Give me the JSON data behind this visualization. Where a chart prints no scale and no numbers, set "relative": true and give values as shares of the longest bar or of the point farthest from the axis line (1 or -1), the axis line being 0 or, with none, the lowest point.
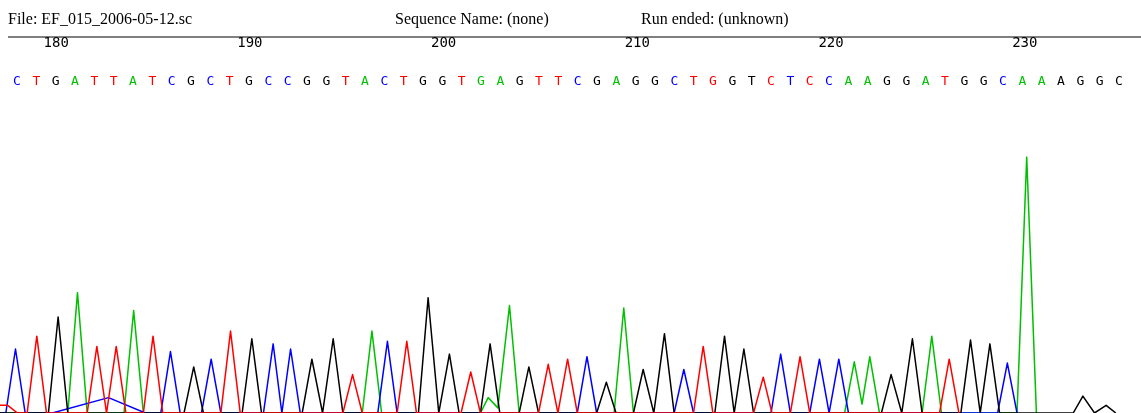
{
  "chart_data": {
    "type": "line",
    "relative": true,
    "marker": "none",
    "annotations": [
      "File: EF_015_2006-05-12.sc",
      "Sequence Name: (none)",
      "Run ended: (unknown)",
      "C",
      "T",
      "G",
      "A",
      "T",
      "T",
      "A",
      "T",
      "C",
      "G",
      "C",
      "T",
      "G",
      "C",
      "C",
      "G",
      "G",
      "T",
      "A",
      "C",
      "T",
      "G",
      "G",
      "T",
      "G",
      "A",
      "G",
      "T",
      "T",
      "C",
      "G",
      "A",
      "G",
      "G",
      "C",
      "T",
      "G",
      "G",
      "T",
      "C",
      "T",
      "C",
      "C",
      "A",
      "A",
      "G",
      "G",
      "A",
      "T",
      "G",
      "G",
      "C",
      "A",
      "A",
      "A",
      "G",
      "G",
      "C"
    ],
    "xlim": [
      177.1,
      236.0
    ],
    "xticks": [
      180,
      190,
      200,
      210,
      220,
      230
    ],
    "series": [
      {
        "color": "#00c000",
        "x": [
          177.1,
          180.6,
          181.1,
          181.6,
          183.5,
          184.0,
          184.5,
          195.8,
          196.3,
          196.8,
          201.9,
          202.3,
          202.8,
          203.4,
          203.9,
          208.8,
          209.3,
          209.8,
          220.7,
          221.2,
          221.6,
          222.0,
          222.5,
          224.7,
          225.2,
          225.7,
          229.6,
          230.1,
          230.6
        ],
        "values": [
          0,
          0,
          0.47,
          0,
          0,
          0.4,
          0,
          0,
          0.32,
          0,
          0,
          0.06,
          0.02,
          0.42,
          0,
          0,
          0.41,
          0,
          0,
          0.2,
          0.035,
          0.22,
          0,
          0,
          0.3,
          0,
          0,
          1,
          0
        ]
      },
      {
        "color": "#0000ff",
        "x": [
          177.1,
          177.4,
          177.9,
          178.4,
          179.8,
          182.7,
          184.6,
          185.4,
          185.9,
          186.4,
          187.5,
          188.0,
          188.5,
          190.7,
          191.2,
          191.65,
          192.1,
          192.6,
          196.6,
          197.1,
          197.6,
          206.9,
          207.4,
          207.9,
          211.9,
          212.4,
          212.9,
          216.9,
          217.4,
          217.9,
          218.9,
          219.4,
          219.9,
          220.4,
          220.9,
          228.6,
          229.1,
          229.6
        ],
        "values": [
          0,
          0,
          0.25,
          0,
          0,
          0.06,
          0,
          0,
          0.24,
          0,
          0,
          0.21,
          0,
          0,
          0.27,
          0,
          0.25,
          0,
          0,
          0.28,
          0,
          0,
          0.22,
          0,
          0,
          0.17,
          0,
          0,
          0.23,
          0,
          0,
          0.21,
          0,
          0.21,
          0,
          0,
          0.195,
          0
        ]
      },
      {
        "color": "#000000",
        "x": [
          177.1,
          179.6,
          180.1,
          180.6,
          186.6,
          187.1,
          187.6,
          189.6,
          190.1,
          190.6,
          192.7,
          193.2,
          193.75,
          194.3,
          194.8,
          198.7,
          199.2,
          199.75,
          200.3,
          200.8,
          201.9,
          202.4,
          202.9,
          203.9,
          204.4,
          204.9,
          207.9,
          208.4,
          208.9,
          209.8,
          210.3,
          210.85,
          211.4,
          211.9,
          214.0,
          214.5,
          215.0,
          215.5,
          216.0,
          222.6,
          223.1,
          223.65,
          224.2,
          224.7,
          226.7,
          227.2,
          227.7,
          228.2,
          228.7,
          232.5,
          233.0,
          233.6,
          234.2,
          234.7
        ],
        "values": [
          0,
          0,
          0.375,
          0,
          0,
          0.18,
          0,
          0,
          0.29,
          0,
          0,
          0.21,
          0,
          0.29,
          0,
          0,
          0.45,
          0,
          0.23,
          0,
          0,
          0.27,
          0,
          0,
          0.18,
          0,
          0,
          0.12,
          0,
          0,
          0.17,
          0,
          0.31,
          0,
          0,
          0.3,
          0,
          0.25,
          0,
          0,
          0.15,
          0,
          0.29,
          0,
          0,
          0.285,
          0,
          0.27,
          0,
          0,
          0.066,
          0,
          0.03,
          0
        ]
      },
      {
        "color": "#ff0000",
        "x": [
          177.1,
          177.5,
          178.0,
          178.5,
          179.0,
          179.5,
          181.6,
          182.1,
          182.6,
          183.1,
          183.6,
          184.5,
          185.0,
          185.5,
          188.5,
          189.0,
          189.5,
          194.8,
          195.3,
          195.8,
          197.6,
          198.1,
          198.6,
          200.9,
          201.4,
          201.9,
          204.9,
          205.4,
          205.9,
          206.4,
          206.9,
          212.9,
          213.4,
          213.9,
          216.0,
          216.5,
          216.95,
          217.9,
          218.4,
          218.9,
          225.6,
          226.1,
          226.6
        ],
        "values": [
          0.03,
          0.03,
          0,
          0,
          0.3,
          0,
          0,
          0.26,
          0,
          0.26,
          0,
          0,
          0.3,
          0,
          0,
          0.32,
          0,
          0,
          0.15,
          0,
          0,
          0.28,
          0,
          0,
          0.16,
          0,
          0,
          0.19,
          0,
          0.21,
          0,
          0,
          0.26,
          0,
          0,
          0.14,
          0,
          0,
          0.22,
          0,
          0,
          0.21,
          0
        ]
      }
    ]
  }
}
